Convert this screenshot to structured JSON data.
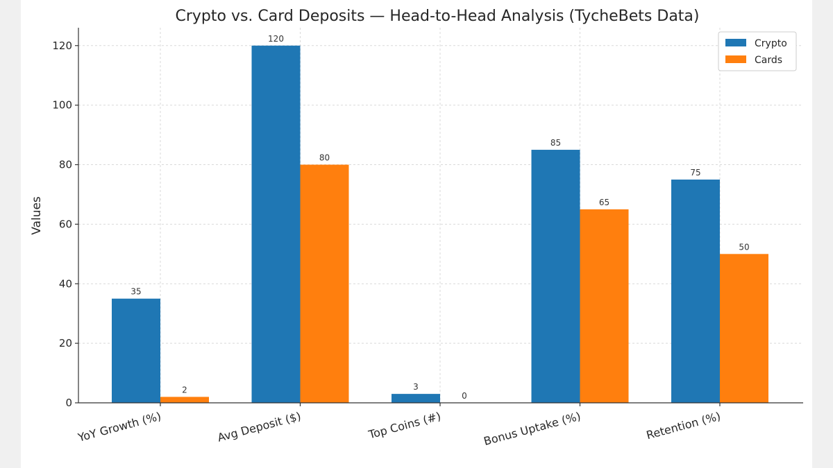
{
  "chart_data": {
    "type": "bar",
    "title": "Crypto vs. Card Deposits — Head-to-Head Analysis (TycheBets Data)",
    "xlabel": "",
    "ylabel": "Values",
    "categories": [
      "YoY Growth (%)",
      "Avg Deposit ($)",
      "Top Coins (#)",
      "Bonus Uptake (%)",
      "Retention (%)"
    ],
    "series": [
      {
        "name": "Crypto",
        "color": "#1f77b4",
        "values": [
          35,
          120,
          3,
          85,
          75
        ]
      },
      {
        "name": "Cards",
        "color": "#ff7f0e",
        "values": [
          2,
          80,
          0,
          65,
          50
        ]
      }
    ],
    "ylim": [
      0,
      126
    ],
    "yticks": [
      0,
      20,
      40,
      60,
      80,
      100,
      120
    ],
    "grid": true,
    "legend_position": "top-right"
  }
}
